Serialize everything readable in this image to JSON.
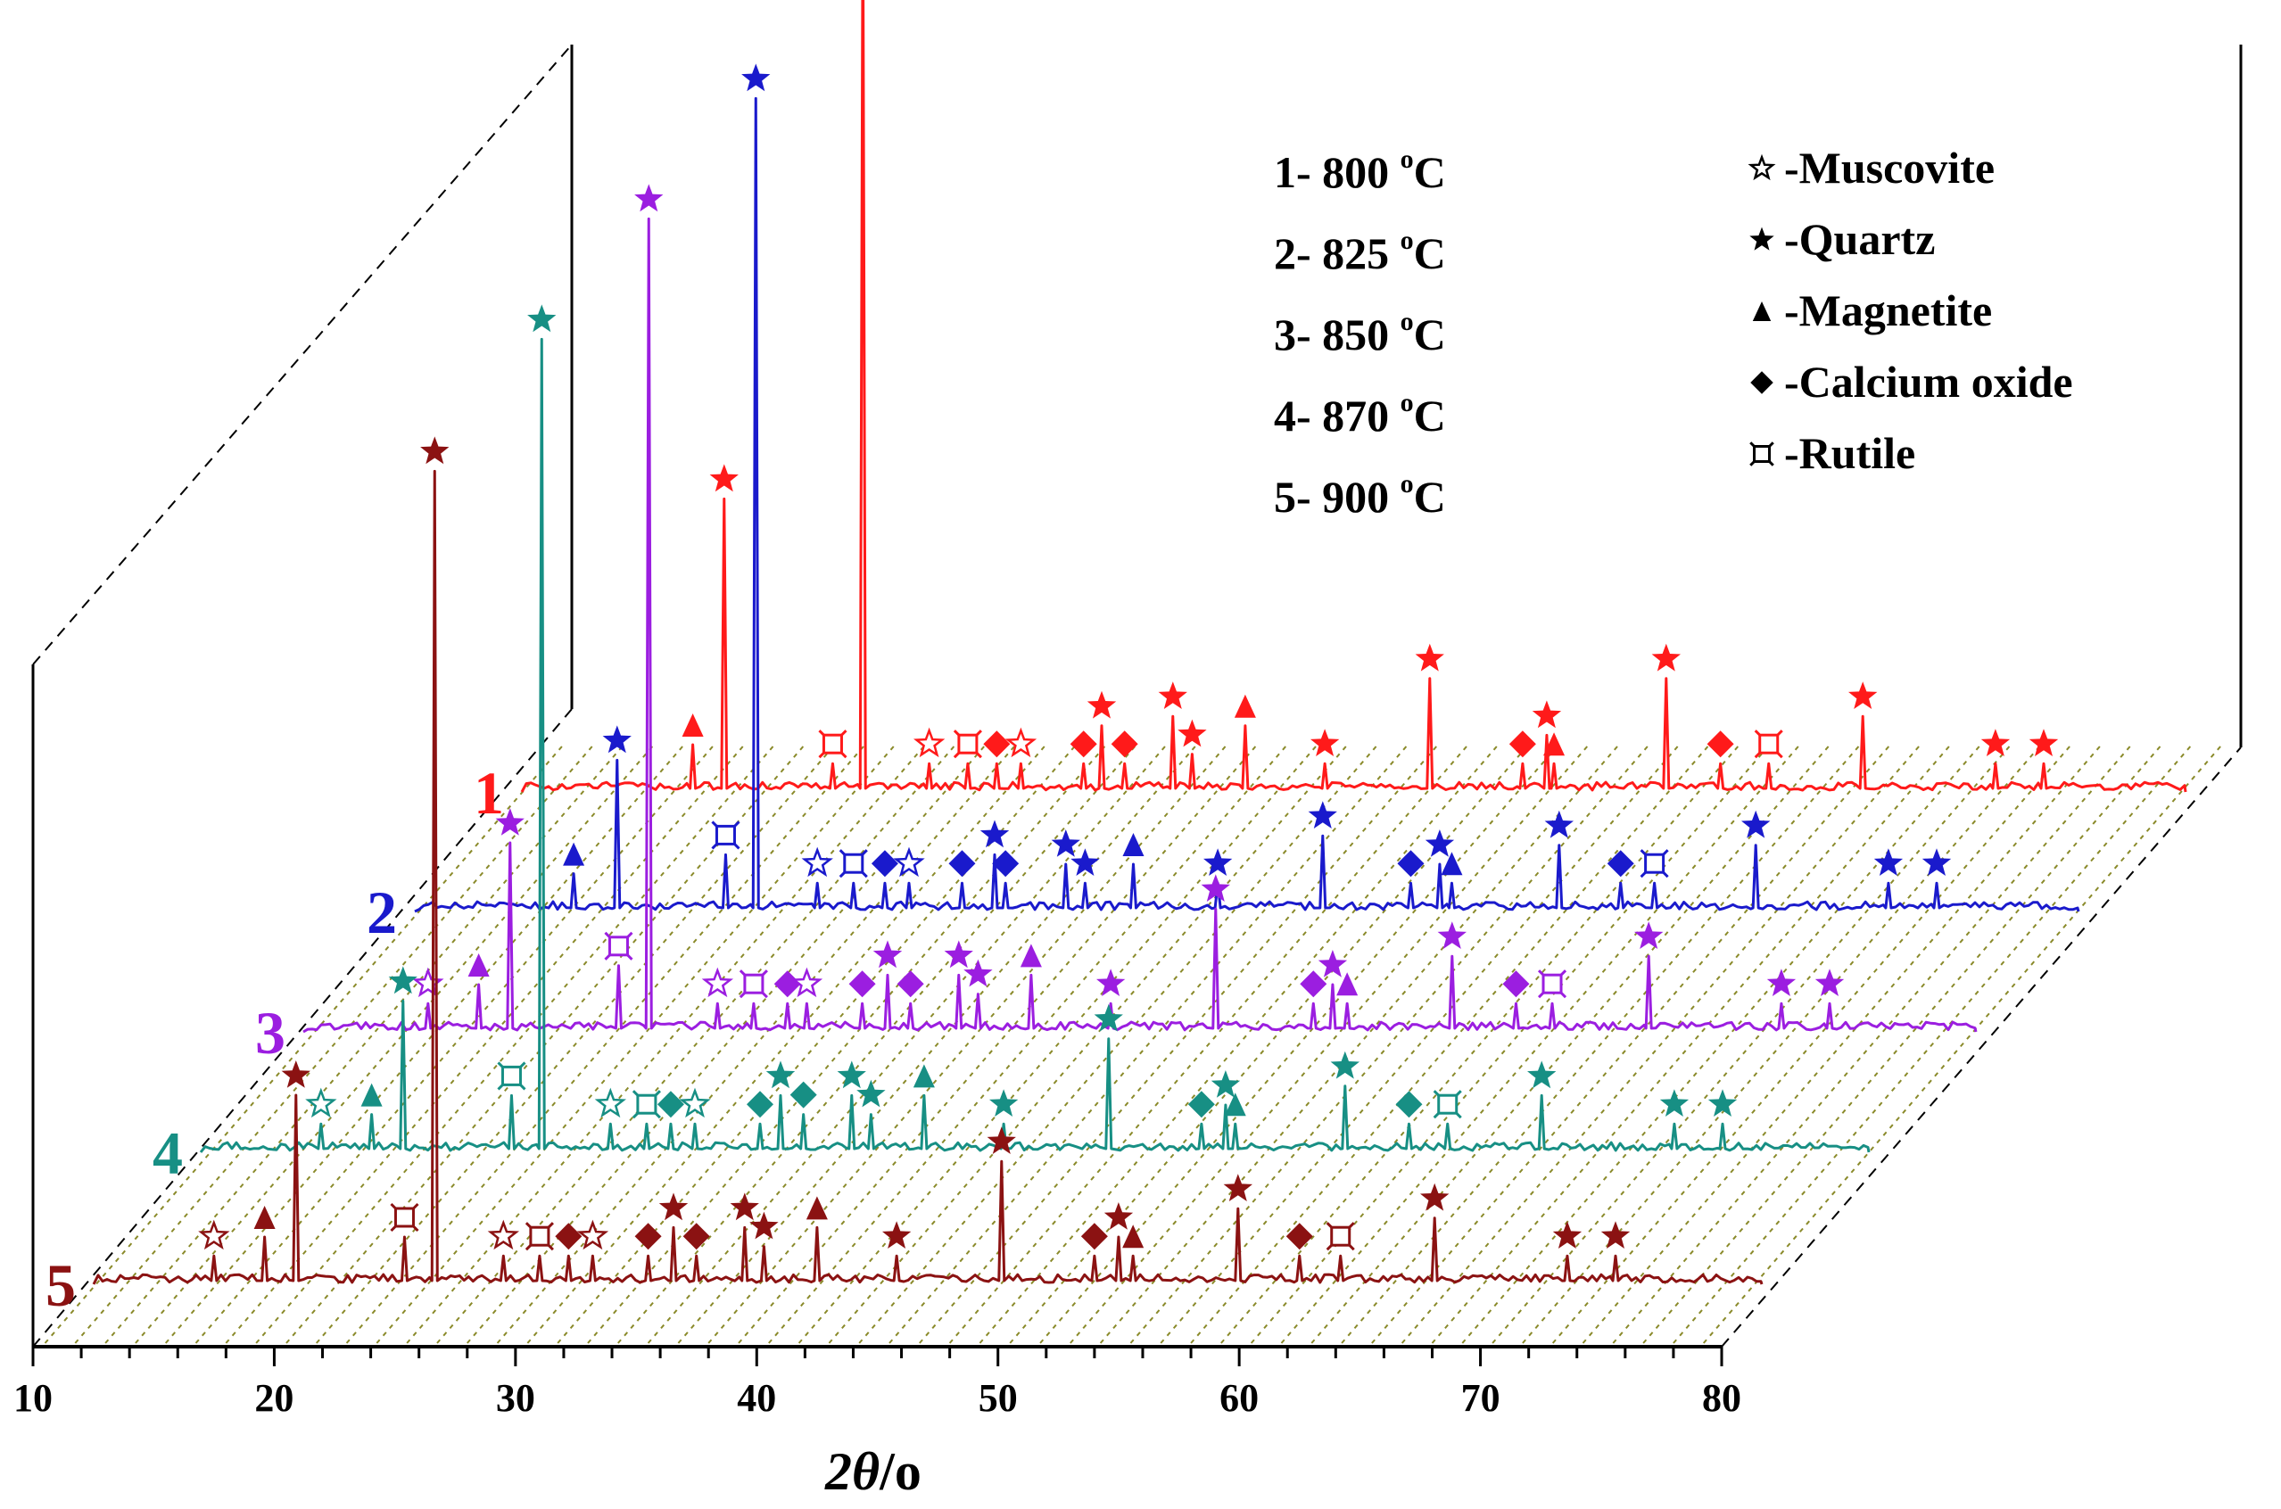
{
  "chart_data": {
    "type": "line",
    "title": "",
    "xlabel_symbol": "2θ",
    "xlabel_unit": "/o",
    "xlim": [
      10,
      80
    ],
    "xticks": [
      "10",
      "20",
      "30",
      "40",
      "50",
      "60",
      "70",
      "80"
    ],
    "grid": false,
    "legend_temperatures": {
      "position": "top-center",
      "items": [
        {
          "num": "1-",
          "temp": "800",
          "deg": "o",
          "unit": "C"
        },
        {
          "num": "2-",
          "temp": "825",
          "deg": "o",
          "unit": "C"
        },
        {
          "num": "3-",
          "temp": "850",
          "deg": "o",
          "unit": "C"
        },
        {
          "num": "4-",
          "temp": "870",
          "deg": "o",
          "unit": "C"
        },
        {
          "num": "5-",
          "temp": "900",
          "deg": "o",
          "unit": "C"
        }
      ]
    },
    "legend_phases": {
      "position": "top-right",
      "items": [
        {
          "marker": "star-open",
          "symbol": "☆",
          "label": "-Muscovite"
        },
        {
          "marker": "star",
          "symbol": "★",
          "label": "-Quartz"
        },
        {
          "marker": "triangle",
          "symbol": "▲",
          "label": "-Magnetite"
        },
        {
          "marker": "diamond",
          "symbol": "◆",
          "label": "-Calcium oxide"
        },
        {
          "marker": "rutile",
          "symbol": "¤",
          "label": " -Rutile"
        }
      ]
    },
    "series": [
      {
        "id": "1",
        "label": "1",
        "color": "#ff1a1a",
        "peaks": [
          {
            "x": 26.65,
            "h": 0.95,
            "m": "quartz"
          },
          {
            "x": 20.9,
            "h": 0.31,
            "m": "quartz"
          },
          {
            "x": 19.6,
            "h": 0.05,
            "m": "magnetite"
          },
          {
            "x": 25.4,
            "h": 0.03,
            "m": "rutile"
          },
          {
            "x": 29.4,
            "h": 0.03,
            "m": "muscovite"
          },
          {
            "x": 31.0,
            "h": 0.03,
            "m": "rutile"
          },
          {
            "x": 32.2,
            "h": 0.03,
            "m": "calcium"
          },
          {
            "x": 33.2,
            "h": 0.03,
            "m": "muscovite"
          },
          {
            "x": 35.8,
            "h": 0.03,
            "m": "calcium"
          },
          {
            "x": 36.55,
            "h": 0.07,
            "m": "quartz"
          },
          {
            "x": 37.5,
            "h": 0.03,
            "m": "calcium"
          },
          {
            "x": 39.5,
            "h": 0.08,
            "m": "quartz"
          },
          {
            "x": 40.3,
            "h": 0.04,
            "m": "quartz"
          },
          {
            "x": 42.5,
            "h": 0.07,
            "m": "magnetite"
          },
          {
            "x": 45.8,
            "h": 0.03,
            "m": "quartz"
          },
          {
            "x": 50.15,
            "h": 0.12,
            "m": "quartz"
          },
          {
            "x": 54.0,
            "h": 0.03,
            "m": "calcium"
          },
          {
            "x": 55.0,
            "h": 0.06,
            "m": "quartz"
          },
          {
            "x": 55.3,
            "h": 0.03,
            "m": "magnetite"
          },
          {
            "x": 59.95,
            "h": 0.12,
            "m": "quartz"
          },
          {
            "x": 62.2,
            "h": 0.03,
            "m": "calcium"
          },
          {
            "x": 64.2,
            "h": 0.03,
            "m": "rutile"
          },
          {
            "x": 68.1,
            "h": 0.08,
            "m": "quartz"
          },
          {
            "x": 73.6,
            "h": 0.03,
            "m": "quartz"
          },
          {
            "x": 75.6,
            "h": 0.03,
            "m": "quartz"
          }
        ]
      },
      {
        "id": "2",
        "label": "2",
        "color": "#1a1acc",
        "peaks": [
          {
            "x": 26.65,
            "h": 0.86,
            "m": "quartz"
          },
          {
            "x": 20.9,
            "h": 0.16,
            "m": "quartz"
          },
          {
            "x": 19.1,
            "h": 0.04,
            "m": "magnetite"
          },
          {
            "x": 25.4,
            "h": 0.06,
            "m": "rutile"
          },
          {
            "x": 29.2,
            "h": 0.03,
            "m": "muscovite"
          },
          {
            "x": 30.7,
            "h": 0.03,
            "m": "rutile"
          },
          {
            "x": 32.0,
            "h": 0.03,
            "m": "calcium"
          },
          {
            "x": 33.0,
            "h": 0.03,
            "m": "muscovite"
          },
          {
            "x": 35.2,
            "h": 0.03,
            "m": "calcium"
          },
          {
            "x": 36.55,
            "h": 0.06,
            "m": "quartz"
          },
          {
            "x": 37.0,
            "h": 0.03,
            "m": "calcium"
          },
          {
            "x": 39.5,
            "h": 0.05,
            "m": "quartz"
          },
          {
            "x": 40.3,
            "h": 0.03,
            "m": "quartz"
          },
          {
            "x": 42.3,
            "h": 0.05,
            "m": "magnetite"
          },
          {
            "x": 45.8,
            "h": 0.03,
            "m": "quartz"
          },
          {
            "x": 50.15,
            "h": 0.08,
            "m": "quartz"
          },
          {
            "x": 53.8,
            "h": 0.03,
            "m": "calcium"
          },
          {
            "x": 55.0,
            "h": 0.05,
            "m": "quartz"
          },
          {
            "x": 55.5,
            "h": 0.03,
            "m": "magnetite"
          },
          {
            "x": 59.95,
            "h": 0.07,
            "m": "quartz"
          },
          {
            "x": 62.5,
            "h": 0.03,
            "m": "calcium"
          },
          {
            "x": 63.9,
            "h": 0.03,
            "m": "rutile"
          },
          {
            "x": 68.1,
            "h": 0.07,
            "m": "quartz"
          },
          {
            "x": 73.6,
            "h": 0.03,
            "m": "quartz"
          },
          {
            "x": 75.6,
            "h": 0.03,
            "m": "quartz"
          }
        ]
      },
      {
        "id": "3",
        "label": "3",
        "color": "#9b1ee0",
        "peaks": [
          {
            "x": 26.65,
            "h": 0.86,
            "m": "quartz"
          },
          {
            "x": 20.9,
            "h": 0.2,
            "m": "quartz"
          },
          {
            "x": 19.6,
            "h": 0.05,
            "m": "magnetite"
          },
          {
            "x": 17.5,
            "h": 0.03,
            "m": "muscovite"
          },
          {
            "x": 25.4,
            "h": 0.07,
            "m": "rutile"
          },
          {
            "x": 29.5,
            "h": 0.03,
            "m": "muscovite"
          },
          {
            "x": 31.0,
            "h": 0.03,
            "m": "rutile"
          },
          {
            "x": 32.4,
            "h": 0.03,
            "m": "calcium"
          },
          {
            "x": 33.2,
            "h": 0.03,
            "m": "muscovite"
          },
          {
            "x": 35.5,
            "h": 0.03,
            "m": "calcium"
          },
          {
            "x": 36.55,
            "h": 0.06,
            "m": "quartz"
          },
          {
            "x": 37.5,
            "h": 0.03,
            "m": "calcium"
          },
          {
            "x": 39.5,
            "h": 0.06,
            "m": "quartz"
          },
          {
            "x": 40.3,
            "h": 0.04,
            "m": "quartz"
          },
          {
            "x": 42.5,
            "h": 0.06,
            "m": "magnetite"
          },
          {
            "x": 45.8,
            "h": 0.03,
            "m": "quartz"
          },
          {
            "x": 50.15,
            "h": 0.13,
            "m": "quartz"
          },
          {
            "x": 54.2,
            "h": 0.03,
            "m": "calcium"
          },
          {
            "x": 55.0,
            "h": 0.05,
            "m": "quartz"
          },
          {
            "x": 55.6,
            "h": 0.03,
            "m": "magnetite"
          },
          {
            "x": 59.95,
            "h": 0.08,
            "m": "quartz"
          },
          {
            "x": 62.6,
            "h": 0.03,
            "m": "calcium"
          },
          {
            "x": 64.1,
            "h": 0.03,
            "m": "rutile"
          },
          {
            "x": 68.1,
            "h": 0.08,
            "m": "quartz"
          },
          {
            "x": 73.6,
            "h": 0.03,
            "m": "quartz"
          },
          {
            "x": 75.6,
            "h": 0.03,
            "m": "quartz"
          }
        ]
      },
      {
        "id": "4",
        "label": "4",
        "color": "#178f84",
        "peaks": [
          {
            "x": 26.65,
            "h": 0.86,
            "m": "quartz"
          },
          {
            "x": 20.9,
            "h": 0.16,
            "m": "quartz"
          },
          {
            "x": 17.5,
            "h": 0.03,
            "m": "muscovite"
          },
          {
            "x": 19.6,
            "h": 0.04,
            "m": "magnetite"
          },
          {
            "x": 25.4,
            "h": 0.06,
            "m": "rutile"
          },
          {
            "x": 29.5,
            "h": 0.03,
            "m": "muscovite"
          },
          {
            "x": 31.0,
            "h": 0.03,
            "m": "rutile"
          },
          {
            "x": 32.0,
            "h": 0.03,
            "m": "calcium"
          },
          {
            "x": 33.0,
            "h": 0.03,
            "m": "muscovite"
          },
          {
            "x": 35.7,
            "h": 0.03,
            "m": "calcium"
          },
          {
            "x": 36.55,
            "h": 0.06,
            "m": "quartz"
          },
          {
            "x": 37.5,
            "h": 0.04,
            "m": "calcium"
          },
          {
            "x": 39.5,
            "h": 0.06,
            "m": "quartz"
          },
          {
            "x": 40.3,
            "h": 0.04,
            "m": "quartz"
          },
          {
            "x": 42.5,
            "h": 0.06,
            "m": "magnetite"
          },
          {
            "x": 45.8,
            "h": 0.03,
            "m": "quartz"
          },
          {
            "x": 50.15,
            "h": 0.12,
            "m": "quartz"
          },
          {
            "x": 54.0,
            "h": 0.03,
            "m": "calcium"
          },
          {
            "x": 55.0,
            "h": 0.05,
            "m": "quartz"
          },
          {
            "x": 55.4,
            "h": 0.03,
            "m": "magnetite"
          },
          {
            "x": 59.95,
            "h": 0.07,
            "m": "quartz"
          },
          {
            "x": 62.6,
            "h": 0.03,
            "m": "calcium"
          },
          {
            "x": 64.2,
            "h": 0.03,
            "m": "rutile"
          },
          {
            "x": 68.1,
            "h": 0.06,
            "m": "quartz"
          },
          {
            "x": 73.6,
            "h": 0.03,
            "m": "quartz"
          },
          {
            "x": 75.6,
            "h": 0.03,
            "m": "quartz"
          }
        ]
      },
      {
        "id": "5",
        "label": "5",
        "color": "#8b1212",
        "peaks": [
          {
            "x": 26.65,
            "h": 0.86,
            "m": "quartz"
          },
          {
            "x": 20.9,
            "h": 0.2,
            "m": "quartz"
          },
          {
            "x": 17.5,
            "h": 0.03,
            "m": "muscovite"
          },
          {
            "x": 19.6,
            "h": 0.05,
            "m": "magnetite"
          },
          {
            "x": 25.4,
            "h": 0.05,
            "m": "rutile"
          },
          {
            "x": 29.5,
            "h": 0.03,
            "m": "muscovite"
          },
          {
            "x": 31.0,
            "h": 0.03,
            "m": "rutile"
          },
          {
            "x": 32.2,
            "h": 0.03,
            "m": "calcium"
          },
          {
            "x": 33.2,
            "h": 0.03,
            "m": "muscovite"
          },
          {
            "x": 35.5,
            "h": 0.03,
            "m": "calcium"
          },
          {
            "x": 36.55,
            "h": 0.06,
            "m": "quartz"
          },
          {
            "x": 37.5,
            "h": 0.03,
            "m": "calcium"
          },
          {
            "x": 39.5,
            "h": 0.06,
            "m": "quartz"
          },
          {
            "x": 40.3,
            "h": 0.04,
            "m": "quartz"
          },
          {
            "x": 42.5,
            "h": 0.06,
            "m": "magnetite"
          },
          {
            "x": 45.8,
            "h": 0.03,
            "m": "quartz"
          },
          {
            "x": 50.15,
            "h": 0.13,
            "m": "quartz"
          },
          {
            "x": 54.0,
            "h": 0.03,
            "m": "calcium"
          },
          {
            "x": 55.0,
            "h": 0.05,
            "m": "quartz"
          },
          {
            "x": 55.6,
            "h": 0.03,
            "m": "magnetite"
          },
          {
            "x": 59.95,
            "h": 0.08,
            "m": "quartz"
          },
          {
            "x": 62.5,
            "h": 0.03,
            "m": "calcium"
          },
          {
            "x": 64.2,
            "h": 0.03,
            "m": "rutile"
          },
          {
            "x": 68.1,
            "h": 0.07,
            "m": "quartz"
          },
          {
            "x": 73.6,
            "h": 0.03,
            "m": "quartz"
          },
          {
            "x": 75.6,
            "h": 0.03,
            "m": "quartz"
          }
        ]
      }
    ]
  }
}
